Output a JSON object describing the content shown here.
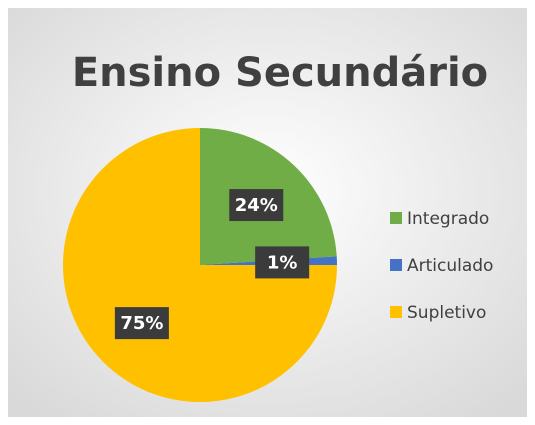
{
  "chart_data": {
    "type": "pie",
    "title": "Ensino Secundário",
    "categories": [
      "Integrado",
      "Articulado",
      "Supletivo"
    ],
    "values": [
      24,
      1,
      75
    ],
    "value_labels": [
      "24%",
      "1%",
      "75%"
    ],
    "colors": [
      "#70ad47",
      "#4472c4",
      "#ffc000"
    ],
    "legend": "right"
  }
}
